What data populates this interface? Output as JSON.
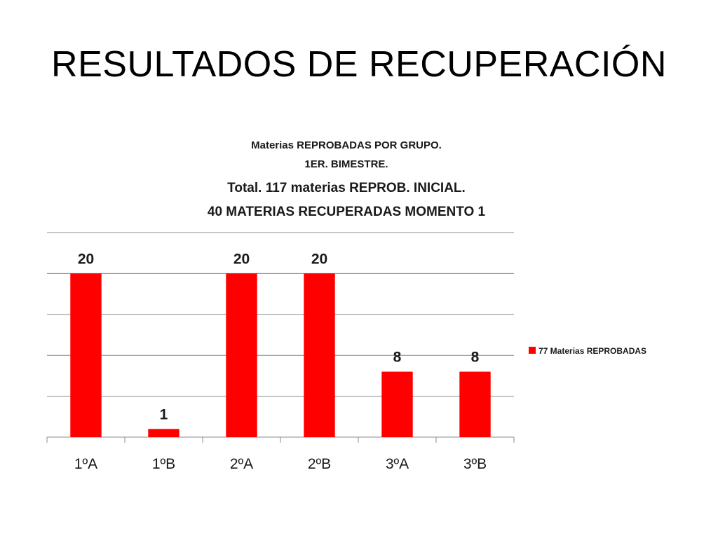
{
  "slide": {
    "title": "RESULTADOS DE RECUPERACIÓN"
  },
  "chart_data": {
    "type": "bar",
    "title_lines": [
      "Materias REPROBADAS POR GRUPO.",
      "1ER. BIMESTRE.",
      "Total. 117 materias REPROB. INICIAL.",
      "40 MATERIAS RECUPERADAS MOMENTO 1"
    ],
    "categories": [
      "1ºA",
      "1ºB",
      "2ºA",
      "2ºB",
      "3ºA",
      "3ºB"
    ],
    "series": [
      {
        "name": "77 Materias REPROBADAS",
        "values": [
          20,
          1,
          20,
          20,
          8,
          8
        ],
        "color": "#ff0000"
      }
    ],
    "ylim": [
      0,
      25
    ],
    "grid": true,
    "legend_position": "right",
    "xlabel": "",
    "ylabel": ""
  }
}
